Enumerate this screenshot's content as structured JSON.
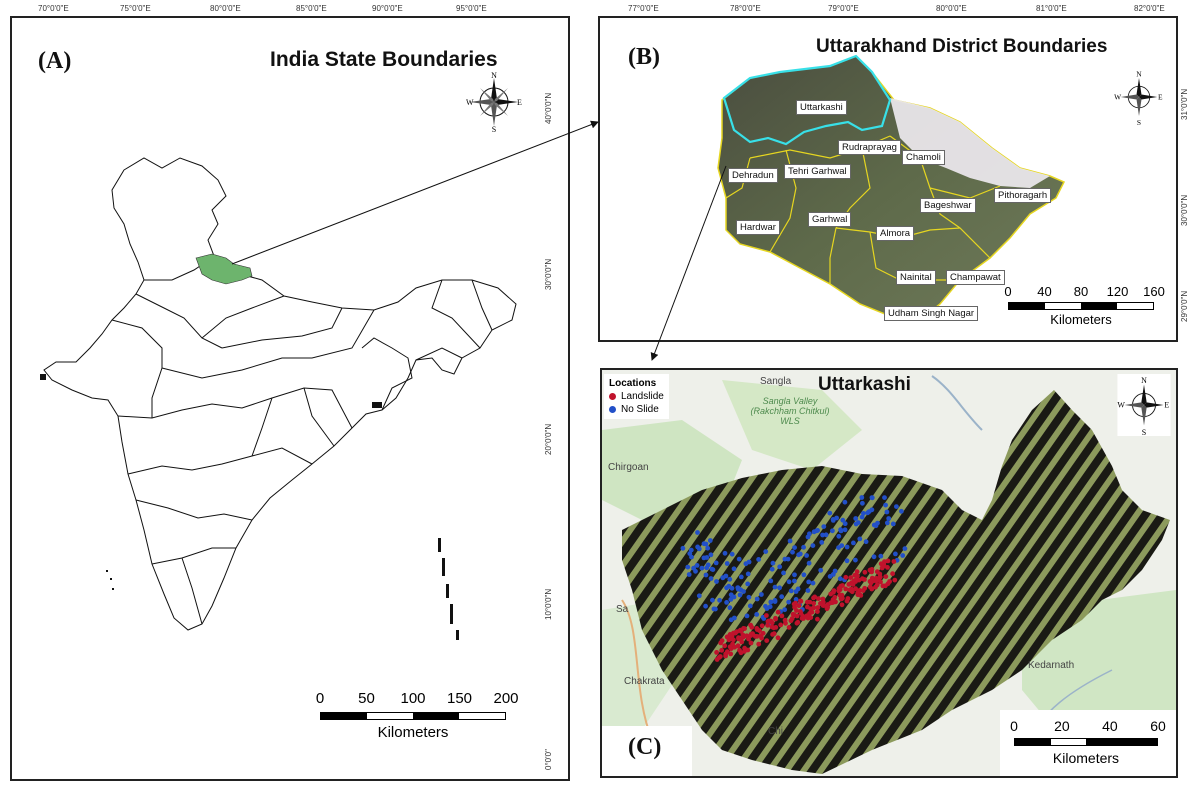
{
  "panel_a": {
    "letter": "(A)",
    "title": "India State Boundaries",
    "lon_ticks": [
      "70°0'0\"E",
      "75°0'0\"E",
      "80°0'0\"E",
      "85°0'0\"E",
      "90°0'0\"E",
      "95°0'0\"E"
    ],
    "lat_ticks": [
      "40°0'0\"N",
      "30°0'0\"N",
      "20°0'0\"N",
      "10°0'0\"N",
      "0°0'0\""
    ],
    "scale": {
      "numbers": [
        "0",
        "50",
        "100",
        "150",
        "200"
      ],
      "unit": "Kilometers"
    },
    "highlight_color": "#6db46d"
  },
  "panel_b": {
    "letter": "(B)",
    "title": "Uttarakhand District Boundaries",
    "lon_ticks": [
      "77°0'0\"E",
      "78°0'0\"E",
      "79°0'0\"E",
      "80°0'0\"E",
      "81°0'0\"E",
      "82°0'0\"E"
    ],
    "lat_ticks": [
      "31°0'0\"N",
      "30°0'0\"N",
      "29°0'0\"N"
    ],
    "districts": [
      "Uttarkashi",
      "Rudraprayag",
      "Chamoli",
      "Dehradun",
      "Tehri Garhwal",
      "Pithoragarh",
      "Bageshwar",
      "Hardwar",
      "Garhwal",
      "Almora",
      "Nainital",
      "Champawat",
      "Udham Singh Nagar"
    ],
    "scale": {
      "numbers": [
        "0",
        "40",
        "80",
        "120",
        "160"
      ],
      "unit": "Kilometers"
    },
    "highlight_color": "#38e0e8",
    "boundary_color": "#e6d620"
  },
  "panel_c": {
    "letter": "(C)",
    "title": "Uttarkashi",
    "legend": {
      "title": "Locations",
      "items": [
        {
          "label": "Landslide",
          "color": "#c0122c"
        },
        {
          "label": "No Slide",
          "color": "#2250c8"
        }
      ]
    },
    "places": [
      "Sangla",
      "Sangla Valley (Rakchham Chitkul) WLS",
      "Chirgoan",
      "Sa",
      "Chakrata",
      "Chi",
      "Kedarnath"
    ],
    "scale": {
      "numbers": [
        "0",
        "20",
        "40",
        "60"
      ],
      "unit": "Kilometers"
    }
  },
  "compass": {
    "n": "N",
    "s": "S",
    "e": "E",
    "w": "W"
  }
}
